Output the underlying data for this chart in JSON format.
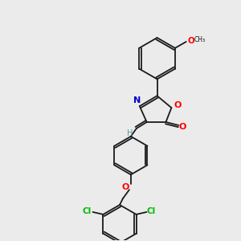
{
  "bg_color": "#ebebeb",
  "bond_color": "#1a1a1a",
  "atom_colors": {
    "O": "#ff0000",
    "N": "#0000cc",
    "Cl": "#00bb00",
    "H": "#4d9999"
  },
  "figsize": [
    3.0,
    3.0
  ],
  "dpi": 100
}
